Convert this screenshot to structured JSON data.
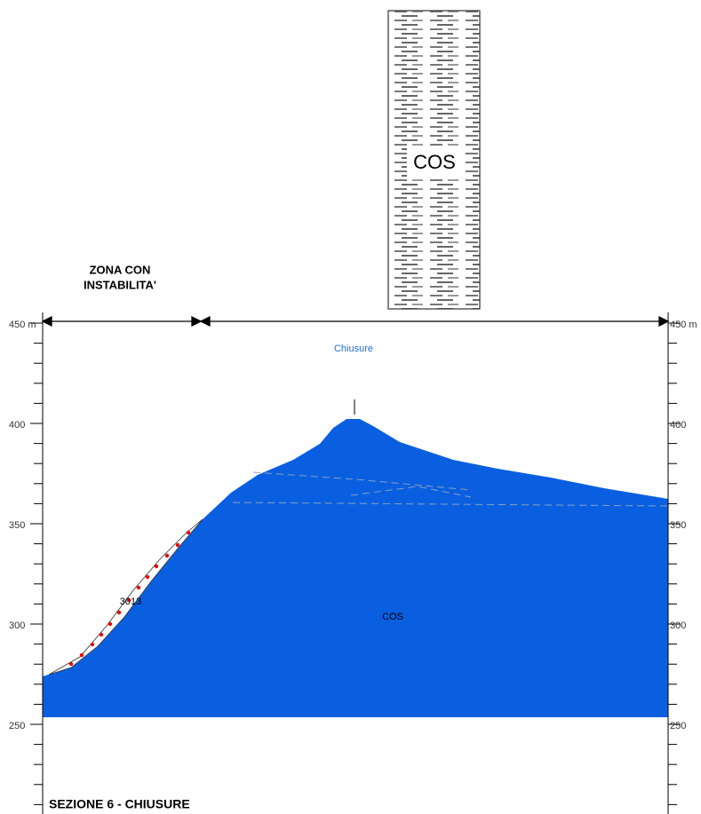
{
  "legend_column": {
    "label": "COS"
  },
  "zone_label": [
    "ZONA CON",
    "INSTABILITA'"
  ],
  "section_label": "Chiusure",
  "formation_label": "COS",
  "landslide_label": "3013",
  "title": "SEZIONE 6 - CHIUSURE",
  "left_axis": {
    "ticks": [
      "450 m",
      "400",
      "350",
      "300",
      "250"
    ]
  },
  "right_axis": {
    "ticks": [
      "450 m",
      "400",
      "350",
      "300",
      "250"
    ]
  }
}
